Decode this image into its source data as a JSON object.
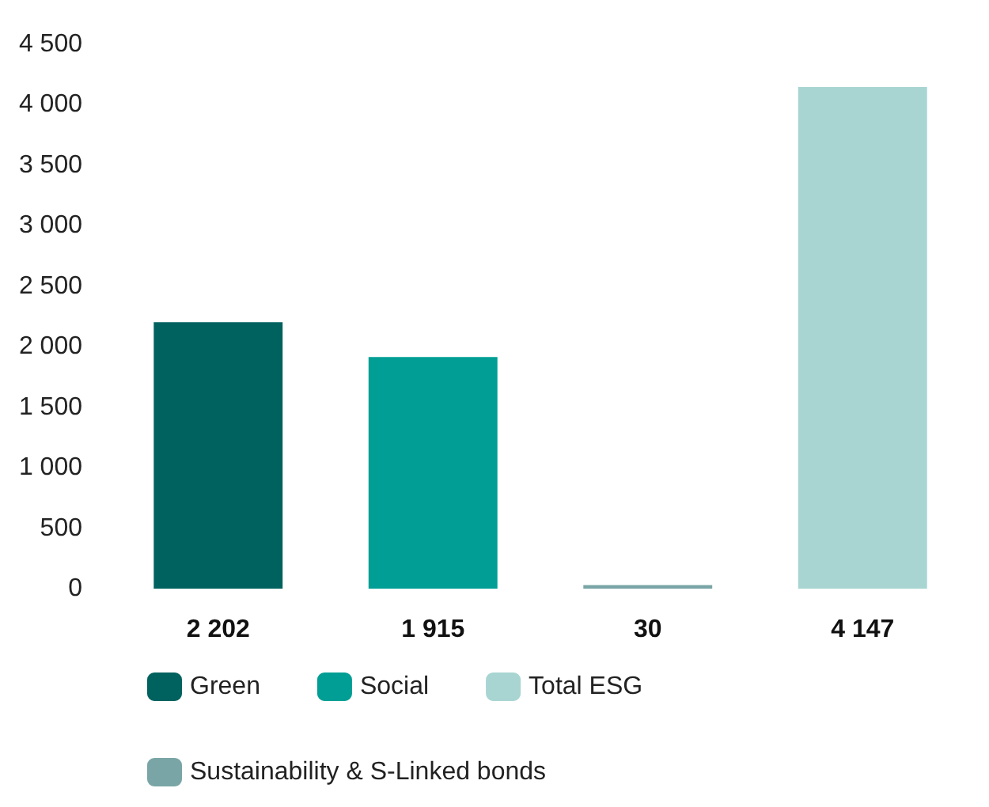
{
  "chart_data": {
    "type": "bar",
    "stacked": true,
    "categories": [
      null,
      null,
      null,
      null
    ],
    "series": [
      {
        "name": "Green",
        "color": "#00625f",
        "values": [
          2202,
          null,
          null,
          null
        ],
        "value_labels": [
          "2 202",
          null,
          null,
          null
        ]
      },
      {
        "name": "Social",
        "color": "#009e94",
        "values": [
          null,
          1915,
          null,
          null
        ],
        "value_labels": [
          null,
          "1 915",
          null,
          null
        ]
      },
      {
        "name": "Total ESG",
        "color": "#a8d5d2",
        "values": [
          null,
          null,
          null,
          4147
        ],
        "value_labels": [
          null,
          null,
          null,
          "4 147"
        ]
      },
      {
        "name": "Sustainability & S-Linked bonds",
        "color": "#7aa5a6",
        "values": [
          null,
          null,
          30,
          null
        ],
        "value_labels": [
          null,
          null,
          "30",
          null
        ]
      }
    ],
    "ylim": [
      0,
      4500
    ],
    "yticks": [
      0,
      500,
      {
        "value": 1000,
        "label": "1 000"
      },
      {
        "value": 1500,
        "label": "1 500"
      },
      {
        "value": 2000,
        "label": "2 000"
      },
      {
        "value": 2500,
        "label": "2 500"
      },
      {
        "value": 3000,
        "label": "3 000"
      },
      {
        "value": 3500,
        "label": "3 500"
      },
      {
        "value": 4000,
        "label": "4 000"
      },
      {
        "value": 4500,
        "label": "4 500"
      }
    ],
    "grid": false,
    "legend": "bottom",
    "tick_labels": "y"
  }
}
